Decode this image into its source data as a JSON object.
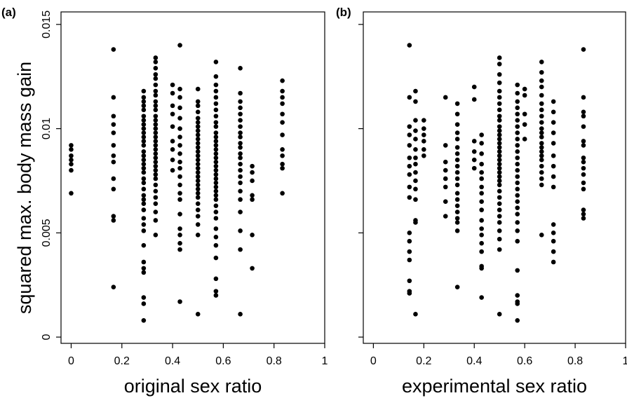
{
  "chart_data": [
    {
      "type": "scatter",
      "panel_label": "(a)",
      "xlabel": "original sex ratio",
      "ylabel": "squared max. body mass gain",
      "xlim": [
        -0.04,
        1.0
      ],
      "ylim": [
        -0.0003,
        0.0156
      ],
      "xticks": [
        "0",
        "0.2",
        "0.4",
        "0.6",
        "0.8",
        "1"
      ],
      "xtick_values": [
        0,
        0.2,
        0.4,
        0.6,
        0.8,
        1
      ],
      "yticks": [
        "0",
        "0.005",
        "0.01",
        "0.015"
      ],
      "ytick_values": [
        0,
        0.005,
        0.01,
        0.015
      ],
      "grid": false,
      "marker_color": "#000000",
      "groups": [
        {
          "x": 0.0,
          "y": [
            0.0092,
            0.009,
            0.0087,
            0.0085,
            0.0083,
            0.008,
            0.0069
          ]
        },
        {
          "x": 0.167,
          "y": [
            0.0138,
            0.0115,
            0.0106,
            0.0102,
            0.0098,
            0.0092,
            0.0087,
            0.0084,
            0.0076,
            0.0071,
            0.0058,
            0.0056,
            0.0024
          ]
        },
        {
          "x": 0.286,
          "y": [
            0.0118,
            0.0115,
            0.0113,
            0.0111,
            0.0109,
            0.0106,
            0.0104,
            0.0102,
            0.01,
            0.0098,
            0.0096,
            0.0094,
            0.0092,
            0.0089,
            0.0087,
            0.0085,
            0.0083,
            0.0081,
            0.0079,
            0.0076,
            0.0074,
            0.0071,
            0.0068,
            0.0066,
            0.0064,
            0.0061,
            0.0057,
            0.0054,
            0.0051,
            0.0044,
            0.0036,
            0.0033,
            0.0031,
            0.0019,
            0.0016,
            0.0008
          ]
        },
        {
          "x": 0.333,
          "y": [
            0.0134,
            0.0132,
            0.0129,
            0.0126,
            0.0124,
            0.0121,
            0.0118,
            0.0116,
            0.0113,
            0.0111,
            0.0109,
            0.0106,
            0.0104,
            0.0102,
            0.01,
            0.0098,
            0.0096,
            0.0094,
            0.0092,
            0.009,
            0.0088,
            0.0086,
            0.0084,
            0.0082,
            0.008,
            0.0078,
            0.0076,
            0.0073,
            0.007,
            0.0067,
            0.0064,
            0.006,
            0.0056,
            0.0049
          ]
        },
        {
          "x": 0.4,
          "y": [
            0.0121,
            0.0117,
            0.0111,
            0.0107,
            0.0101,
            0.0094,
            0.009,
            0.0085,
            0.008
          ]
        },
        {
          "x": 0.429,
          "y": [
            0.014,
            0.0119,
            0.0115,
            0.011,
            0.0105,
            0.01,
            0.0096,
            0.0092,
            0.0088,
            0.0084,
            0.0081,
            0.0077,
            0.0073,
            0.0069,
            0.0066,
            0.0059,
            0.0052,
            0.0049,
            0.0045,
            0.0042,
            0.0017
          ]
        },
        {
          "x": 0.5,
          "y": [
            0.0119,
            0.0113,
            0.0111,
            0.0108,
            0.0105,
            0.0103,
            0.0101,
            0.0099,
            0.0097,
            0.0095,
            0.0093,
            0.0091,
            0.0089,
            0.0087,
            0.0085,
            0.0083,
            0.0081,
            0.0079,
            0.0077,
            0.0075,
            0.0073,
            0.0071,
            0.0069,
            0.0067,
            0.0064,
            0.0061,
            0.0058,
            0.0054,
            0.0049,
            0.0011
          ]
        },
        {
          "x": 0.571,
          "y": [
            0.0132,
            0.0125,
            0.0121,
            0.0118,
            0.0115,
            0.0112,
            0.0109,
            0.0106,
            0.0103,
            0.0101,
            0.0098,
            0.0096,
            0.0094,
            0.0092,
            0.009,
            0.0088,
            0.0086,
            0.0084,
            0.0082,
            0.008,
            0.0078,
            0.0076,
            0.0074,
            0.0072,
            0.007,
            0.0068,
            0.0066,
            0.0063,
            0.006,
            0.0057,
            0.0052,
            0.0048,
            0.0044,
            0.0038,
            0.0028,
            0.0022,
            0.002
          ]
        },
        {
          "x": 0.667,
          "y": [
            0.0129,
            0.0117,
            0.0113,
            0.011,
            0.0107,
            0.0104,
            0.0101,
            0.0098,
            0.0096,
            0.0093,
            0.0091,
            0.0088,
            0.0086,
            0.0083,
            0.008,
            0.0077,
            0.0074,
            0.007,
            0.0066,
            0.006,
            0.0051,
            0.0042,
            0.0011
          ]
        },
        {
          "x": 0.714,
          "y": [
            0.0082,
            0.0079,
            0.0075,
            0.0068,
            0.0066,
            0.0049,
            0.0033
          ]
        },
        {
          "x": 0.833,
          "y": [
            0.0123,
            0.0118,
            0.0115,
            0.0112,
            0.0107,
            0.0103,
            0.0097,
            0.009,
            0.0087,
            0.0083,
            0.0081,
            0.0069
          ]
        }
      ]
    },
    {
      "type": "scatter",
      "panel_label": "(b)",
      "xlabel": "experimental sex ratio",
      "ylabel": "",
      "xlim": [
        -0.04,
        1.0
      ],
      "ylim": [
        -0.0003,
        0.0156
      ],
      "xticks": [
        "0",
        "0.2",
        "0.4",
        "0.6",
        "0.8",
        "1"
      ],
      "xtick_values": [
        0,
        0.2,
        0.4,
        0.6,
        0.8,
        1
      ],
      "yticks": [
        "",
        "",
        "",
        ""
      ],
      "ytick_values": [
        0,
        0.005,
        0.01,
        0.015
      ],
      "grid": false,
      "marker_color": "#000000",
      "groups": [
        {
          "x": 0.143,
          "y": [
            0.014,
            0.0115,
            0.0101,
            0.0097,
            0.0092,
            0.0086,
            0.0082,
            0.0078,
            0.0072,
            0.0067,
            0.005,
            0.0046,
            0.0041,
            0.0037,
            0.0027,
            0.0022,
            0.0021
          ]
        },
        {
          "x": 0.167,
          "y": [
            0.0118,
            0.0113,
            0.0104,
            0.0099,
            0.0095,
            0.009,
            0.0086,
            0.0083,
            0.0079,
            0.0075,
            0.0071,
            0.0066,
            0.0056,
            0.0055,
            0.0011
          ]
        },
        {
          "x": 0.2,
          "y": [
            0.0104,
            0.01,
            0.0097,
            0.0094,
            0.009,
            0.0087
          ]
        },
        {
          "x": 0.286,
          "y": [
            0.0115,
            0.0092,
            0.0084,
            0.008,
            0.0076,
            0.0072,
            0.0065,
            0.0058
          ]
        },
        {
          "x": 0.333,
          "y": [
            0.0112,
            0.0107,
            0.0102,
            0.0098,
            0.0095,
            0.0091,
            0.0088,
            0.0085,
            0.0082,
            0.0079,
            0.0076,
            0.0073,
            0.0069,
            0.0066,
            0.0063,
            0.006,
            0.0057,
            0.0055,
            0.0051,
            0.0024
          ]
        },
        {
          "x": 0.4,
          "y": [
            0.012,
            0.0114,
            0.0094,
            0.0089,
            0.0085,
            0.0081
          ]
        },
        {
          "x": 0.429,
          "y": [
            0.0097,
            0.0093,
            0.0088,
            0.0083,
            0.0079,
            0.0076,
            0.0072,
            0.0069,
            0.0065,
            0.0061,
            0.0056,
            0.0052,
            0.0049,
            0.0045,
            0.0041,
            0.0034,
            0.0033,
            0.0019
          ]
        },
        {
          "x": 0.5,
          "y": [
            0.0134,
            0.0131,
            0.0126,
            0.0122,
            0.0118,
            0.0115,
            0.0112,
            0.0109,
            0.0106,
            0.0104,
            0.0101,
            0.0099,
            0.0097,
            0.0095,
            0.0093,
            0.0091,
            0.0089,
            0.0087,
            0.0085,
            0.0083,
            0.0081,
            0.0079,
            0.0077,
            0.0075,
            0.0073,
            0.007,
            0.0067,
            0.0064,
            0.0061,
            0.0058,
            0.0055,
            0.0051,
            0.0047,
            0.0042,
            0.0011
          ]
        },
        {
          "x": 0.571,
          "y": [
            0.0121,
            0.0117,
            0.0113,
            0.011,
            0.0107,
            0.0104,
            0.0101,
            0.0098,
            0.0095,
            0.0092,
            0.0089,
            0.0086,
            0.0083,
            0.008,
            0.0077,
            0.0074,
            0.0071,
            0.0068,
            0.0065,
            0.0062,
            0.0059,
            0.0055,
            0.0051,
            0.0046,
            0.0032,
            0.002,
            0.0017,
            0.0016,
            0.0008
          ]
        },
        {
          "x": 0.6,
          "y": [
            0.0119,
            0.0116,
            0.0107,
            0.0102,
            0.0095
          ]
        },
        {
          "x": 0.667,
          "y": [
            0.0132,
            0.0127,
            0.0123,
            0.012,
            0.0116,
            0.0112,
            0.0109,
            0.0106,
            0.0103,
            0.01,
            0.0098,
            0.0096,
            0.0093,
            0.0091,
            0.0089,
            0.0087,
            0.0085,
            0.0082,
            0.0079,
            0.0076,
            0.0073,
            0.0049
          ]
        },
        {
          "x": 0.714,
          "y": [
            0.0113,
            0.0108,
            0.0103,
            0.0098,
            0.0093,
            0.0087,
            0.0082,
            0.0077,
            0.0072,
            0.0054,
            0.005,
            0.0046,
            0.0041,
            0.0036
          ]
        },
        {
          "x": 0.833,
          "y": [
            0.0138,
            0.0115,
            0.0108,
            0.0106,
            0.0101,
            0.0094,
            0.0092,
            0.0086,
            0.0084,
            0.0081,
            0.0078,
            0.0074,
            0.0071,
            0.0061,
            0.0059,
            0.0057
          ]
        }
      ]
    }
  ]
}
